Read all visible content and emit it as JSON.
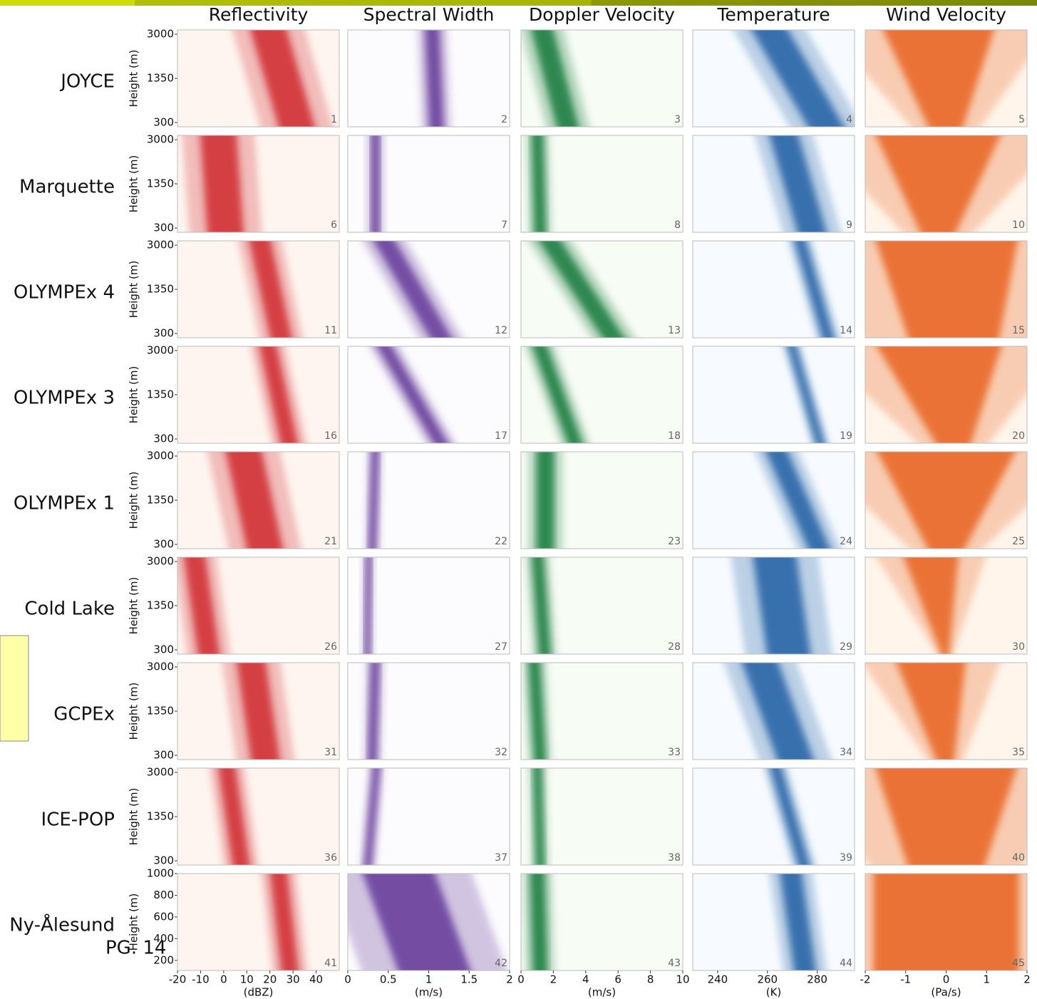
{
  "columns": [
    {
      "title": "Reflectivity",
      "unit": "(dBZ)",
      "xlim": [
        -20,
        50
      ],
      "xticks": [
        -20,
        -10,
        0,
        10,
        20,
        30,
        40
      ]
    },
    {
      "title": "Spectral Width",
      "unit": "(m/s)",
      "xlim": [
        0,
        2
      ],
      "xticks": [
        0,
        0.5,
        1,
        1.5,
        2
      ]
    },
    {
      "title": "Doppler Velocity",
      "unit": "(m/s)",
      "xlim": [
        0,
        10
      ],
      "xticks": [
        0,
        2,
        4,
        6,
        8,
        10
      ]
    },
    {
      "title": "Temperature",
      "unit": "(K)",
      "xlim": [
        230,
        295
      ],
      "xticks": [
        240,
        260,
        280
      ]
    },
    {
      "title": "Wind Velocity",
      "unit": "(Pa/s)",
      "xlim": [
        -2,
        2
      ],
      "xticks": [
        -2,
        -1,
        0,
        1,
        2
      ]
    }
  ],
  "rows": [
    {
      "label": "JOYCE",
      "y_label": "Height (m)",
      "yticks": [
        300,
        1350,
        3000
      ],
      "panels": [
        1,
        2,
        3,
        4,
        5
      ]
    },
    {
      "label": "Marquette",
      "y_label": "Height (m)",
      "yticks": [
        300,
        1350,
        3000
      ],
      "panels": [
        6,
        7,
        8,
        9,
        10
      ]
    },
    {
      "label": "OLYMPEx 4",
      "y_label": "Height (m)",
      "yticks": [
        300,
        1350,
        3000
      ],
      "panels": [
        11,
        12,
        13,
        14,
        15
      ]
    },
    {
      "label": "OLYMPEx 3",
      "y_label": "Height (m)",
      "yticks": [
        300,
        1350,
        3000
      ],
      "panels": [
        16,
        17,
        18,
        19,
        20
      ]
    },
    {
      "label": "OLYMPEx 1",
      "y_label": "Height (m)",
      "yticks": [
        300,
        1350,
        3000
      ],
      "panels": [
        21,
        22,
        23,
        24,
        25
      ]
    },
    {
      "label": "Cold Lake",
      "y_label": "Height (m)",
      "yticks": [
        300,
        1350,
        3000
      ],
      "panels": [
        26,
        27,
        28,
        29,
        30
      ]
    },
    {
      "label": "GCPEx",
      "y_label": "Height (m)",
      "yticks": [
        300,
        1350,
        3000
      ],
      "panels": [
        31,
        32,
        33,
        34,
        35
      ]
    },
    {
      "label": "ICE-POP",
      "y_label": "Height (m)",
      "yticks": [
        300,
        1350,
        3000
      ],
      "panels": [
        36,
        37,
        38,
        39,
        40
      ]
    },
    {
      "label": "Ny-Ålesund",
      "y_label": "Height (m)",
      "ylim": [
        107,
        1000
      ],
      "yticks": [
        200,
        400,
        600,
        800,
        1000
      ],
      "panels": [
        41,
        42,
        43,
        44,
        45
      ]
    }
  ],
  "page_label": "PG. 14"
}
